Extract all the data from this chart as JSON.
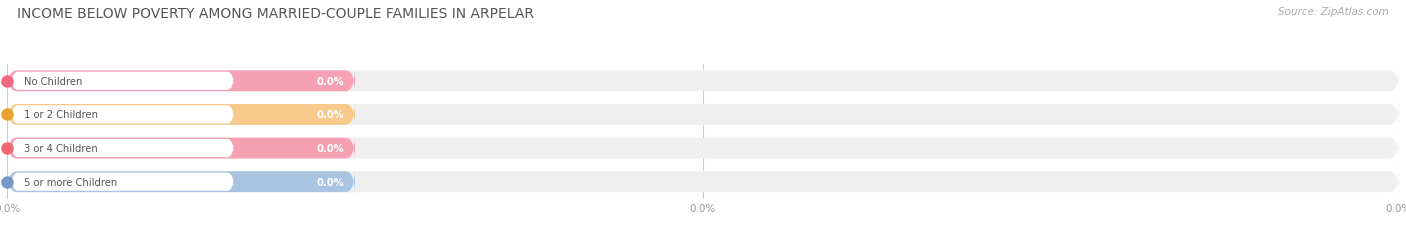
{
  "title": "INCOME BELOW POVERTY AMONG MARRIED-COUPLE FAMILIES IN ARPELAR",
  "source": "Source: ZipAtlas.com",
  "categories": [
    "No Children",
    "1 or 2 Children",
    "3 or 4 Children",
    "5 or more Children"
  ],
  "values": [
    0.0,
    0.0,
    0.0,
    0.0
  ],
  "bar_colors": [
    "#f5a0b5",
    "#f7c98a",
    "#f5a0b0",
    "#a8c4e0"
  ],
  "bar_bg_color": "#efefef",
  "dot_colors": [
    "#f06880",
    "#e8a030",
    "#f06870",
    "#7898c8"
  ],
  "value_label_color": "#ffffff",
  "tick_label_color": "#999999",
  "title_color": "#555555",
  "source_color": "#aaaaaa",
  "xlim_max": 100,
  "colored_bar_pct": 25,
  "bg_color": "#ffffff",
  "fig_width": 14.06,
  "fig_height": 2.32,
  "bar_height": 0.62,
  "bar_gap": 0.38
}
